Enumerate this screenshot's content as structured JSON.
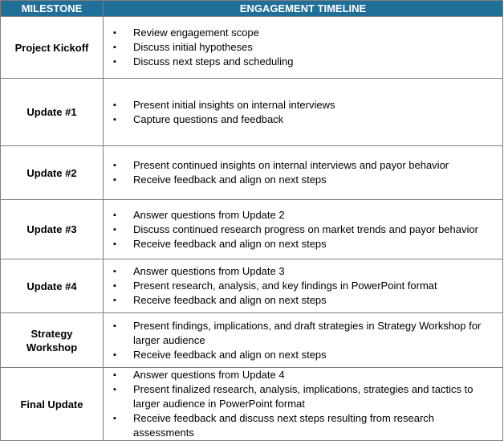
{
  "header": {
    "milestone": "MILESTONE",
    "timeline": "ENGAGEMENT TIMELINE"
  },
  "rows": [
    {
      "milestone": "Project Kickoff",
      "items": [
        "Review engagement scope",
        "Discuss initial hypotheses",
        "Discuss next steps and scheduling"
      ]
    },
    {
      "milestone": "Update #1",
      "items": [
        "Present initial insights on internal interviews",
        "Capture questions and feedback"
      ]
    },
    {
      "milestone": "Update #2",
      "items": [
        "Present continued insights on internal interviews and payor behavior",
        "Receive feedback and align on next steps"
      ]
    },
    {
      "milestone": "Update #3",
      "items": [
        "Answer questions from Update 2",
        "Discuss continued research progress on market trends and payor behavior",
        "Receive feedback and align on next steps"
      ]
    },
    {
      "milestone": "Update #4",
      "items": [
        "Answer questions from Update 3",
        "Present research, analysis, and key findings in PowerPoint format",
        "Receive feedback and align on next steps"
      ]
    },
    {
      "milestone": "Strategy Workshop",
      "items": [
        "Present findings, implications, and draft strategies in Strategy Workshop for larger audience",
        "Receive feedback and align on next steps"
      ]
    },
    {
      "milestone": "Final Update",
      "items": [
        "Answer questions from Update 4",
        "Present finalized research, analysis, implications, strategies and tactics to larger audience in PowerPoint format",
        "Receive feedback and discuss next steps resulting from research assessments"
      ]
    }
  ]
}
